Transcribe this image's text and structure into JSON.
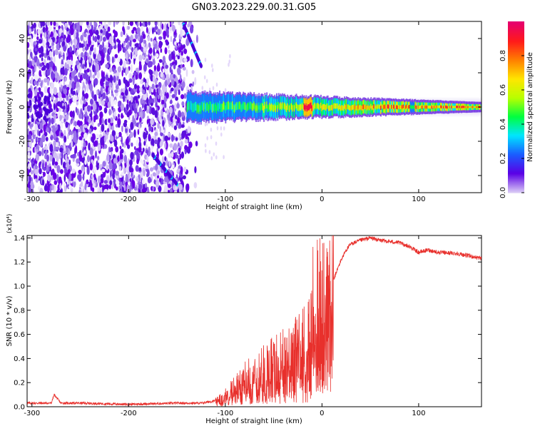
{
  "title": "GN03.2023.229.00.31.G05",
  "chart_data": [
    {
      "type": "heatmap",
      "xlabel": "Height of straight line (km)",
      "ylabel": "Frequency (Hz)",
      "xlim": [
        -305,
        165
      ],
      "ylim": [
        -50,
        50
      ],
      "xticks": [
        -300,
        -200,
        -100,
        0,
        100
      ],
      "yticks": [
        40,
        20,
        0,
        -20,
        -40
      ],
      "colorbar": {
        "label": "Normalized spectral amplitude",
        "range": [
          0,
          1
        ],
        "ticks": [
          "0.0",
          "0.2",
          "0.4",
          "0.6",
          "0.8"
        ],
        "colors": [
          "#d9c9f5",
          "#5a00e6",
          "#1a5cff",
          "#00e5ff",
          "#00ff40",
          "#b8ff00",
          "#ffe600",
          "#ff8000",
          "#ff1a1a",
          "#e6006e"
        ]
      },
      "features": {
        "noise_region_x": [
          -305,
          -128
        ],
        "signal_frequency_hz": 0,
        "diagonal_line": {
          "x": [
            -150,
            -175
          ],
          "y": [
            -45,
            -28
          ]
        },
        "diagonal_line_top": {
          "x": [
            -143,
            -125
          ],
          "y": [
            48,
            24
          ]
        }
      }
    },
    {
      "type": "line",
      "xlabel": "Height of straight line (km)",
      "ylabel": "SNR (10 * v/v)",
      "yscale_label": "(x10⁴)",
      "xlim": [
        -305,
        165
      ],
      "ylim": [
        0,
        1.42
      ],
      "xticks": [
        -300,
        -200,
        -100,
        0,
        100
      ],
      "yticks": [
        "0.0",
        "0.2",
        "0.4",
        "0.6",
        "0.8",
        "1.0",
        "1.2",
        "1.4"
      ],
      "series": [
        {
          "color": "#e8302c",
          "x": [
            -305,
            -280,
            -277,
            -270,
            -250,
            -200,
            -150,
            -125,
            -110,
            -100,
            -90,
            -80,
            -70,
            -60,
            -50,
            -40,
            -30,
            -20,
            -12,
            -8,
            -4,
            0,
            5,
            10,
            15,
            20,
            25,
            30,
            40,
            50,
            60,
            70,
            80,
            90,
            100,
            110,
            120,
            140,
            165
          ],
          "y": [
            0.03,
            0.03,
            0.1,
            0.03,
            0.03,
            0.02,
            0.03,
            0.03,
            0.05,
            0.1,
            0.18,
            0.25,
            0.3,
            0.35,
            0.4,
            0.45,
            0.5,
            0.55,
            0.65,
            0.8,
            0.9,
            0.78,
            0.9,
            1.0,
            1.12,
            1.22,
            1.3,
            1.35,
            1.38,
            1.4,
            1.38,
            1.37,
            1.36,
            1.33,
            1.28,
            1.3,
            1.28,
            1.27,
            1.23
          ]
        }
      ]
    }
  ]
}
